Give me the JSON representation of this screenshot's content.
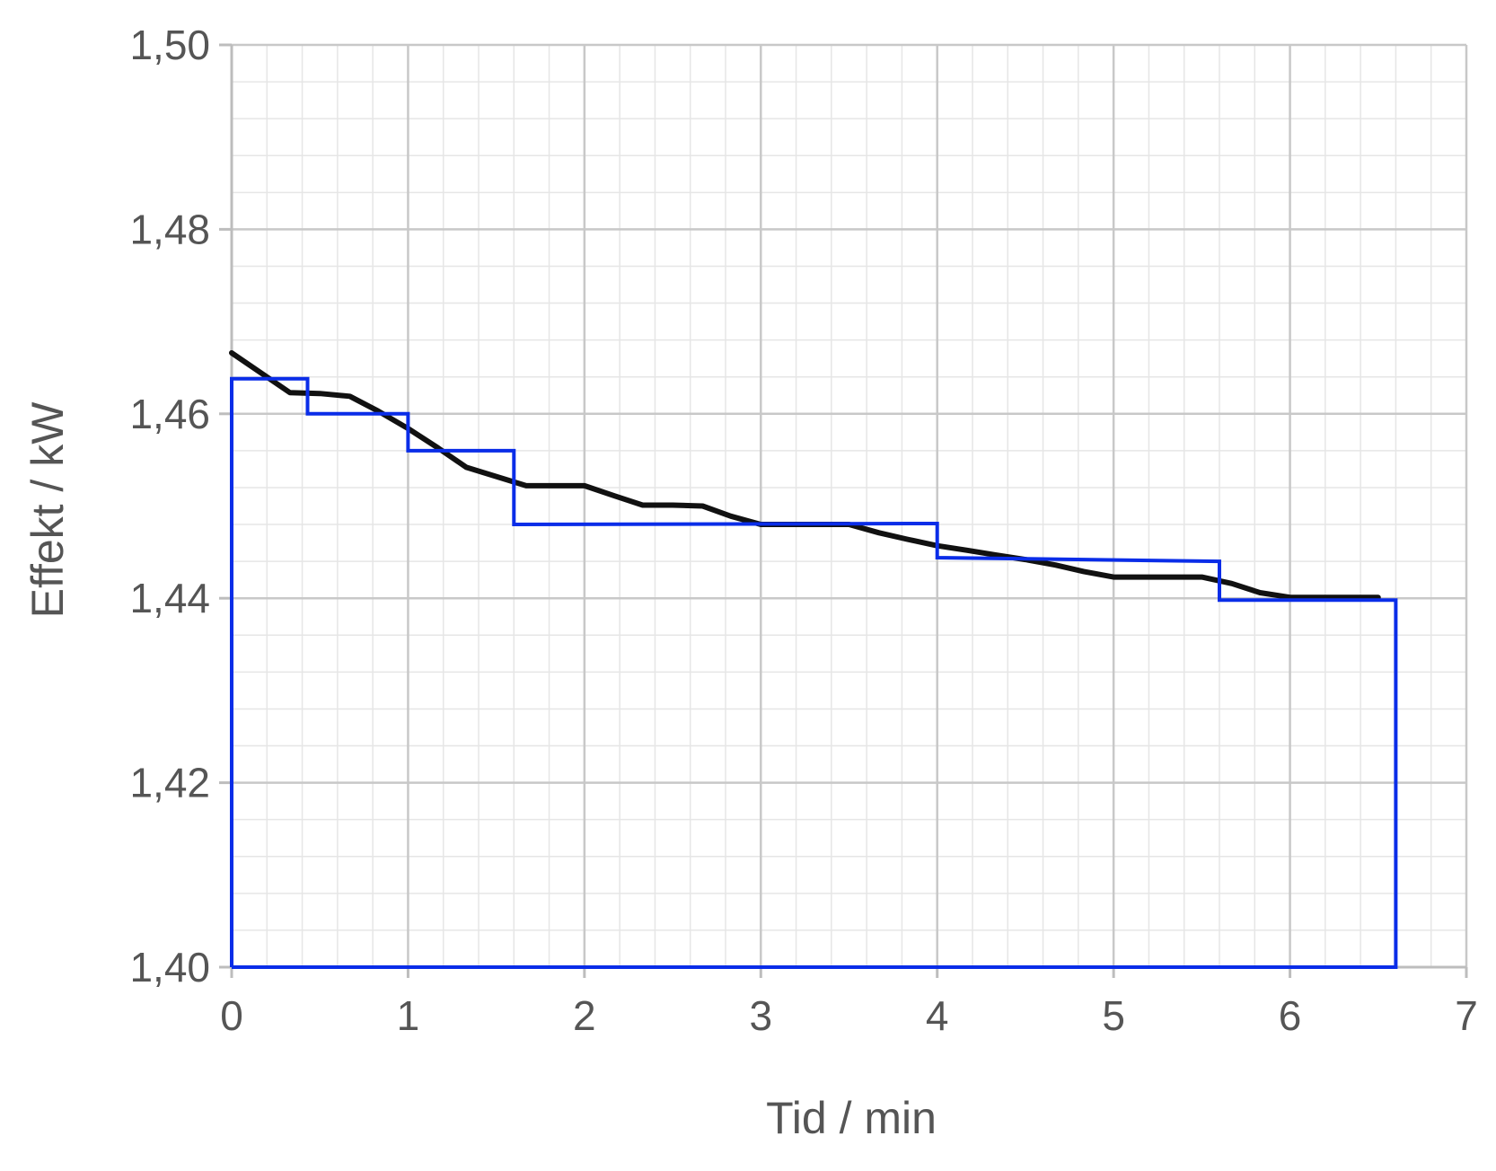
{
  "chart_data": {
    "type": "line",
    "title": "",
    "xlabel": "Tid / min",
    "ylabel": "Effekt / kW",
    "xlim": [
      0,
      7
    ],
    "ylim": [
      1.4,
      1.5
    ],
    "x_ticks": [
      0,
      1,
      2,
      3,
      4,
      5,
      6,
      7
    ],
    "x_tick_labels": [
      "0",
      "1",
      "2",
      "3",
      "4",
      "5",
      "6",
      "7"
    ],
    "y_ticks": [
      1.4,
      1.42,
      1.44,
      1.46,
      1.48,
      1.5
    ],
    "y_tick_labels": [
      "1,40",
      "1,42",
      "1,44",
      "1,46",
      "1,48",
      "1,50"
    ],
    "grid": true,
    "minor_grid": true,
    "legend": "none",
    "series": [
      {
        "color": "#111111",
        "style": "line",
        "x": [
          0,
          0.33,
          0.5,
          0.67,
          0.83,
          1.0,
          1.17,
          1.33,
          1.5,
          1.67,
          1.83,
          2.0,
          2.17,
          2.33,
          2.5,
          2.67,
          2.83,
          3.0,
          3.17,
          3.33,
          3.5,
          3.67,
          3.83,
          4.0,
          4.17,
          4.33,
          4.5,
          4.67,
          4.83,
          5.0,
          5.17,
          5.33,
          5.5,
          5.67,
          5.83,
          6.0,
          6.17,
          6.33,
          6.5
        ],
        "y": [
          1.4666,
          1.4623,
          1.4622,
          1.4619,
          1.4603,
          1.4584,
          1.4563,
          1.4542,
          1.4532,
          1.4522,
          1.4522,
          1.4522,
          1.4511,
          1.4501,
          1.4501,
          1.45,
          1.4489,
          1.448,
          1.448,
          1.448,
          1.448,
          1.4471,
          1.4464,
          1.4457,
          1.4452,
          1.4447,
          1.4442,
          1.4436,
          1.4429,
          1.4423,
          1.4423,
          1.4423,
          1.4423,
          1.4416,
          1.4406,
          1.4401,
          1.4401,
          1.4401,
          1.4401
        ]
      },
      {
        "color": "#0a2de8",
        "style": "step",
        "x": [
          0,
          0,
          0.43,
          0.43,
          1.0,
          1.0,
          1.6,
          1.6,
          4.0,
          4.0,
          5.6,
          5.6,
          6.6,
          6.6,
          0
        ],
        "y": [
          1.4,
          1.4638,
          1.4638,
          1.46,
          1.46,
          1.456,
          1.456,
          1.448,
          1.4481,
          1.4444,
          1.444,
          1.4398,
          1.4398,
          1.4,
          1.4
        ]
      }
    ]
  }
}
